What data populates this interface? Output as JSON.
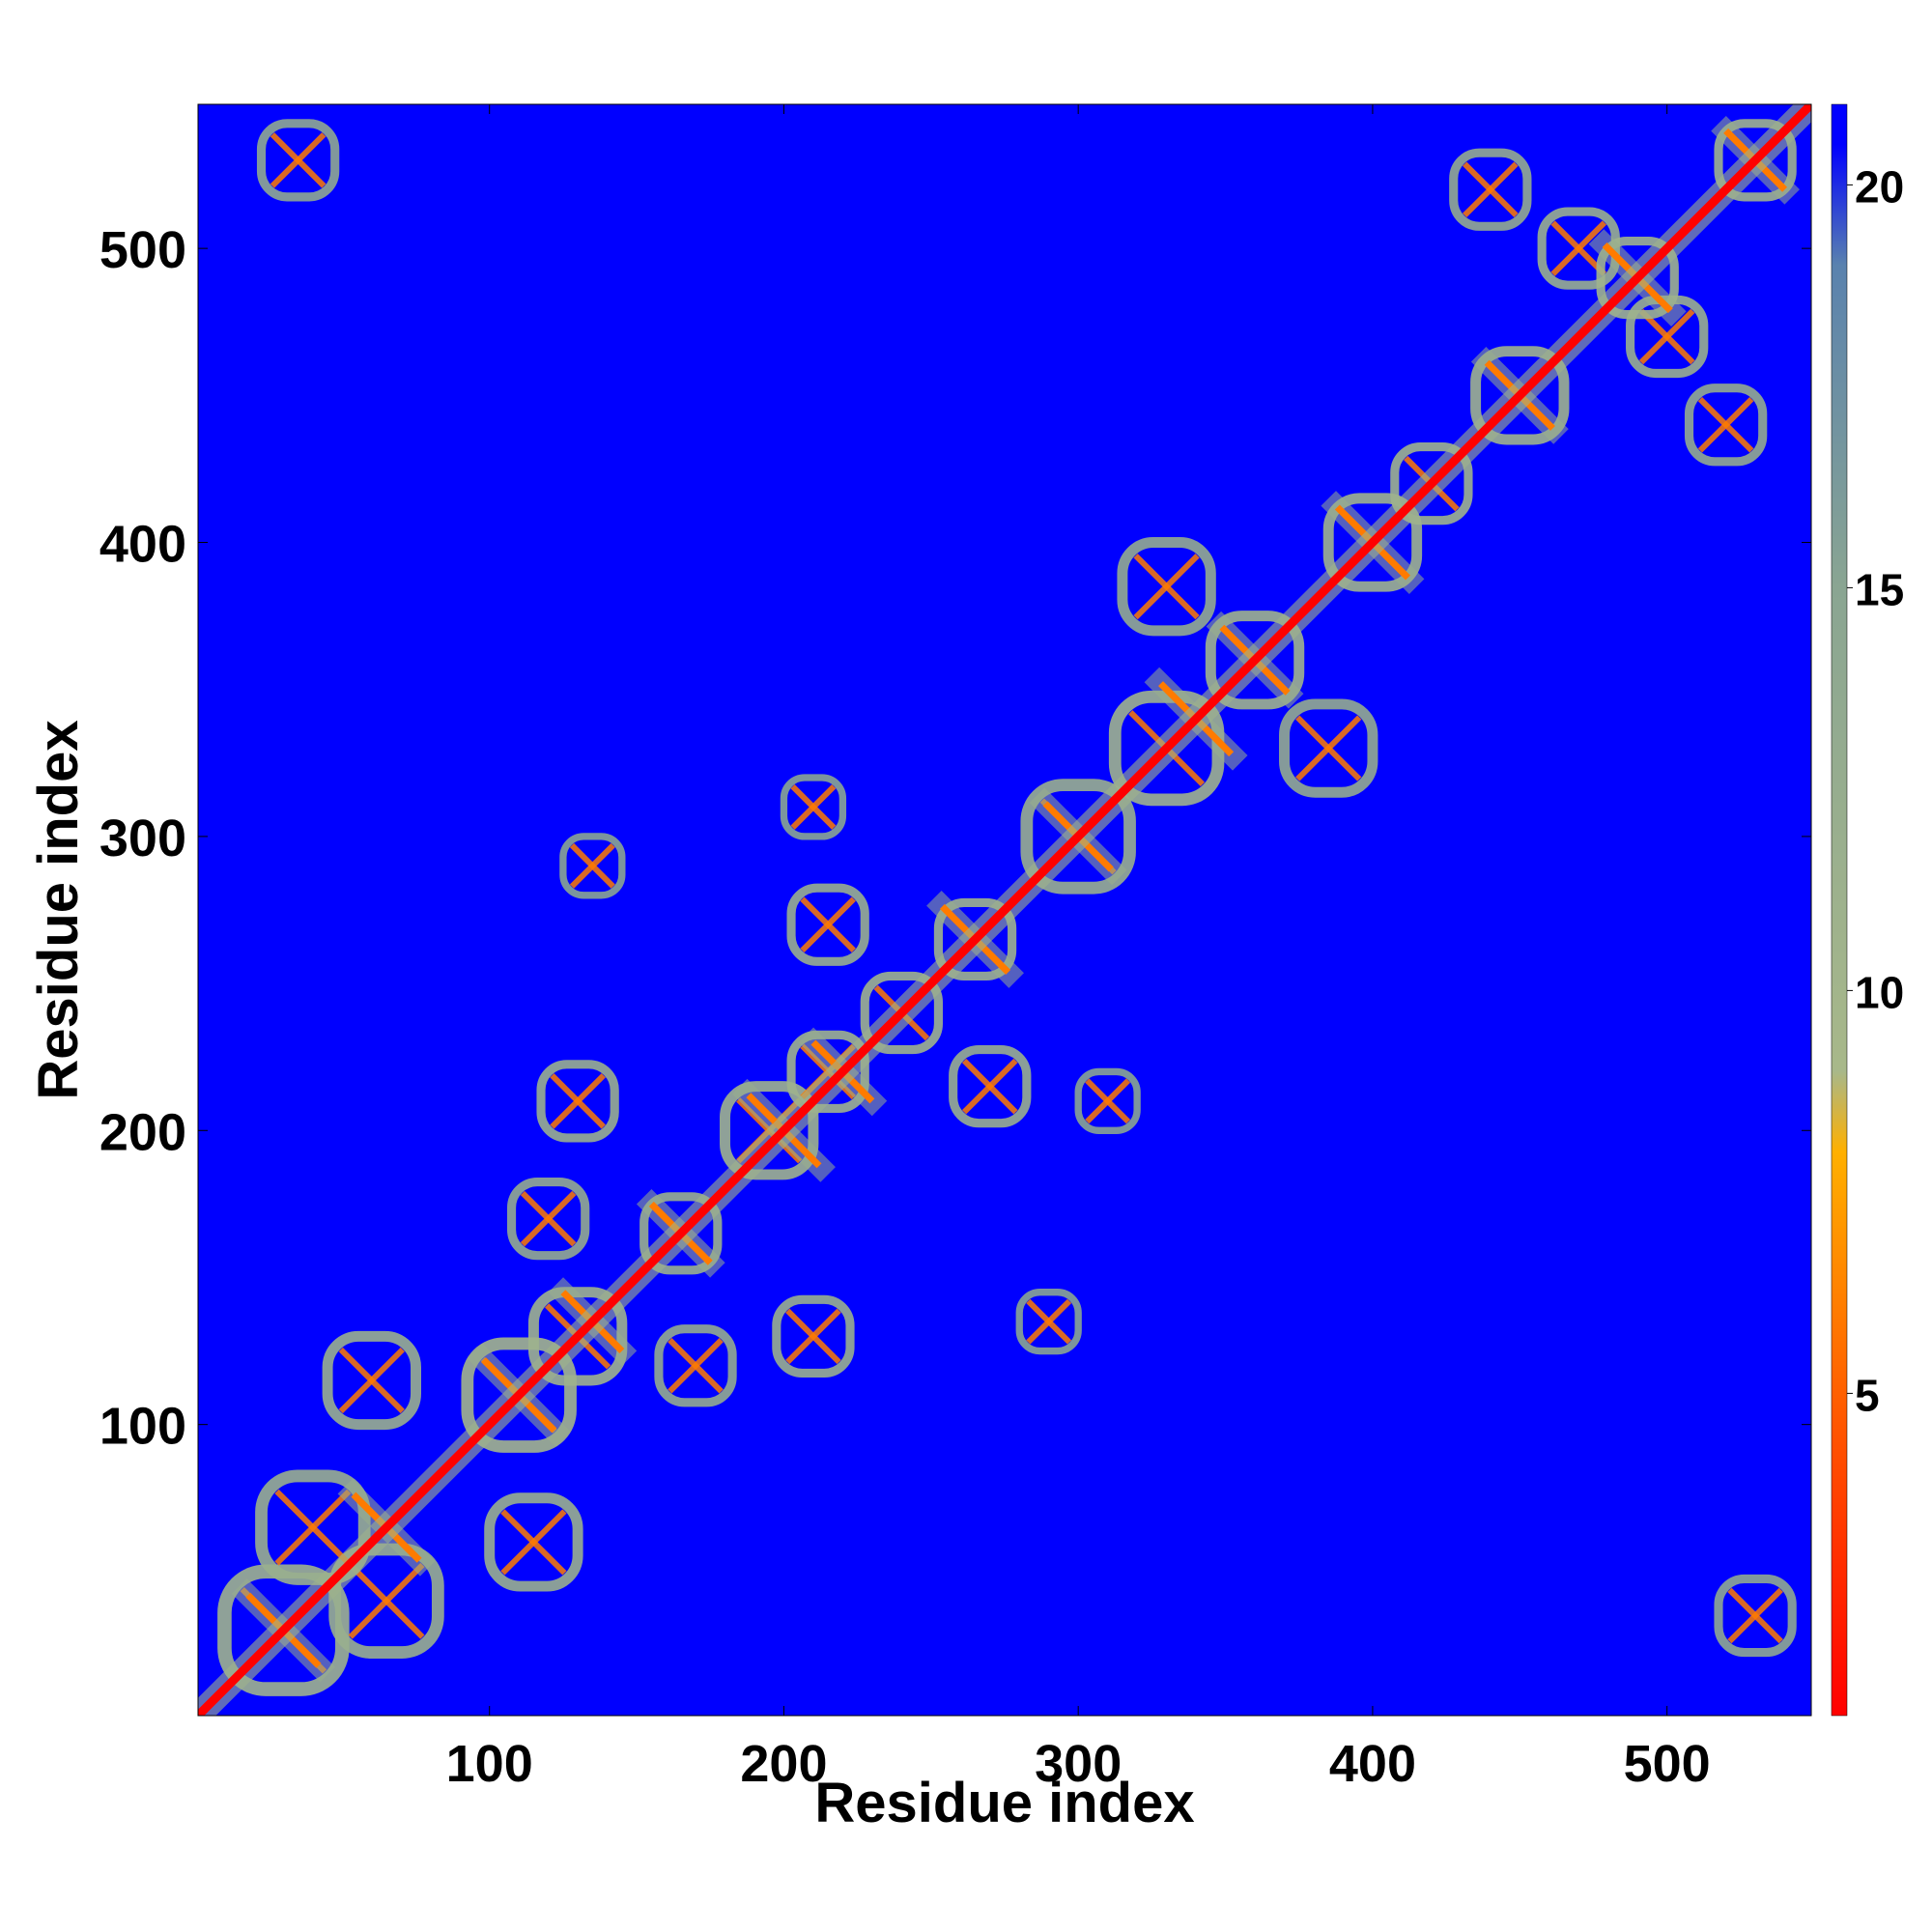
{
  "chart_data": {
    "type": "heatmap",
    "title": "",
    "xlabel": "Residue index",
    "ylabel": "Residue index",
    "xlim": [
      1,
      549
    ],
    "ylim": [
      1,
      549
    ],
    "x_ticks": [
      100,
      200,
      300,
      400,
      500
    ],
    "y_ticks": [
      100,
      200,
      300,
      400,
      500
    ],
    "x_tick_labels": [
      "100",
      "200",
      "300",
      "400",
      "500"
    ],
    "y_tick_labels": [
      "100",
      "200",
      "300",
      "400",
      "500"
    ],
    "symmetric": true,
    "diagonal": true,
    "colorbar": {
      "range": [
        1,
        21
      ],
      "ticks": [
        5,
        10,
        15,
        20
      ],
      "tick_labels": [
        "5",
        "10",
        "15",
        "20"
      ],
      "colors": [
        {
          "value": 1,
          "color": "#ff0000"
        },
        {
          "value": 5,
          "color": "#ff6000"
        },
        {
          "value": 8,
          "color": "#ffb000"
        },
        {
          "value": 9,
          "color": "#a8b88a"
        },
        {
          "value": 15,
          "color": "#8aa592"
        },
        {
          "value": 19,
          "color": "#5a82ae"
        },
        {
          "value": 20.5,
          "color": "#0000ff"
        },
        {
          "value": 21,
          "color": "#0000ff"
        }
      ],
      "background_color": "#0000ff"
    },
    "contact_blocks": [
      {
        "x": 30,
        "y": 30,
        "size": 40,
        "value": 11
      },
      {
        "x": 65,
        "y": 40,
        "size": 35,
        "value": 12
      },
      {
        "x": 40,
        "y": 65,
        "size": 35,
        "value": 12
      },
      {
        "x": 60,
        "y": 115,
        "size": 30,
        "value": 12
      },
      {
        "x": 115,
        "y": 60,
        "size": 30,
        "value": 12
      },
      {
        "x": 110,
        "y": 110,
        "size": 35,
        "value": 10
      },
      {
        "x": 130,
        "y": 130,
        "size": 30,
        "value": 11
      },
      {
        "x": 120,
        "y": 170,
        "size": 25,
        "value": 13
      },
      {
        "x": 170,
        "y": 120,
        "size": 25,
        "value": 13
      },
      {
        "x": 130,
        "y": 210,
        "size": 25,
        "value": 12
      },
      {
        "x": 210,
        "y": 130,
        "size": 25,
        "value": 12
      },
      {
        "x": 165,
        "y": 165,
        "size": 25,
        "value": 12
      },
      {
        "x": 195,
        "y": 200,
        "size": 30,
        "value": 11
      },
      {
        "x": 215,
        "y": 220,
        "size": 25,
        "value": 11
      },
      {
        "x": 240,
        "y": 240,
        "size": 25,
        "value": 11
      },
      {
        "x": 215,
        "y": 270,
        "size": 25,
        "value": 12
      },
      {
        "x": 270,
        "y": 215,
        "size": 25,
        "value": 12
      },
      {
        "x": 265,
        "y": 265,
        "size": 25,
        "value": 11
      },
      {
        "x": 300,
        "y": 300,
        "size": 35,
        "value": 12
      },
      {
        "x": 330,
        "y": 330,
        "size": 35,
        "value": 11
      },
      {
        "x": 360,
        "y": 360,
        "size": 30,
        "value": 11
      },
      {
        "x": 330,
        "y": 385,
        "size": 30,
        "value": 13
      },
      {
        "x": 385,
        "y": 330,
        "size": 30,
        "value": 13
      },
      {
        "x": 400,
        "y": 400,
        "size": 30,
        "value": 11
      },
      {
        "x": 420,
        "y": 420,
        "size": 25,
        "value": 11
      },
      {
        "x": 450,
        "y": 450,
        "size": 30,
        "value": 11
      },
      {
        "x": 470,
        "y": 500,
        "size": 25,
        "value": 12
      },
      {
        "x": 500,
        "y": 470,
        "size": 25,
        "value": 12
      },
      {
        "x": 490,
        "y": 490,
        "size": 25,
        "value": 11
      },
      {
        "x": 530,
        "y": 530,
        "size": 25,
        "value": 11
      },
      {
        "x": 520,
        "y": 440,
        "size": 25,
        "value": 13
      },
      {
        "x": 440,
        "y": 520,
        "size": 25,
        "value": 13
      },
      {
        "x": 35,
        "y": 530,
        "size": 25,
        "value": 14
      },
      {
        "x": 530,
        "y": 35,
        "size": 25,
        "value": 14
      },
      {
        "x": 135,
        "y": 290,
        "size": 20,
        "value": 15
      },
      {
        "x": 290,
        "y": 135,
        "size": 20,
        "value": 15
      },
      {
        "x": 210,
        "y": 310,
        "size": 20,
        "value": 15
      },
      {
        "x": 310,
        "y": 210,
        "size": 20,
        "value": 15
      }
    ],
    "helix_segments": [
      {
        "center": 30,
        "length": 30
      },
      {
        "center": 65,
        "length": 28
      },
      {
        "center": 110,
        "length": 30
      },
      {
        "center": 135,
        "length": 25
      },
      {
        "center": 165,
        "length": 25
      },
      {
        "center": 200,
        "length": 30
      },
      {
        "center": 220,
        "length": 25
      },
      {
        "center": 265,
        "length": 28
      },
      {
        "center": 300,
        "length": 28
      },
      {
        "center": 340,
        "length": 30
      },
      {
        "center": 360,
        "length": 28
      },
      {
        "center": 400,
        "length": 30
      },
      {
        "center": 450,
        "length": 28
      },
      {
        "center": 490,
        "length": 28
      },
      {
        "center": 530,
        "length": 25
      }
    ]
  }
}
